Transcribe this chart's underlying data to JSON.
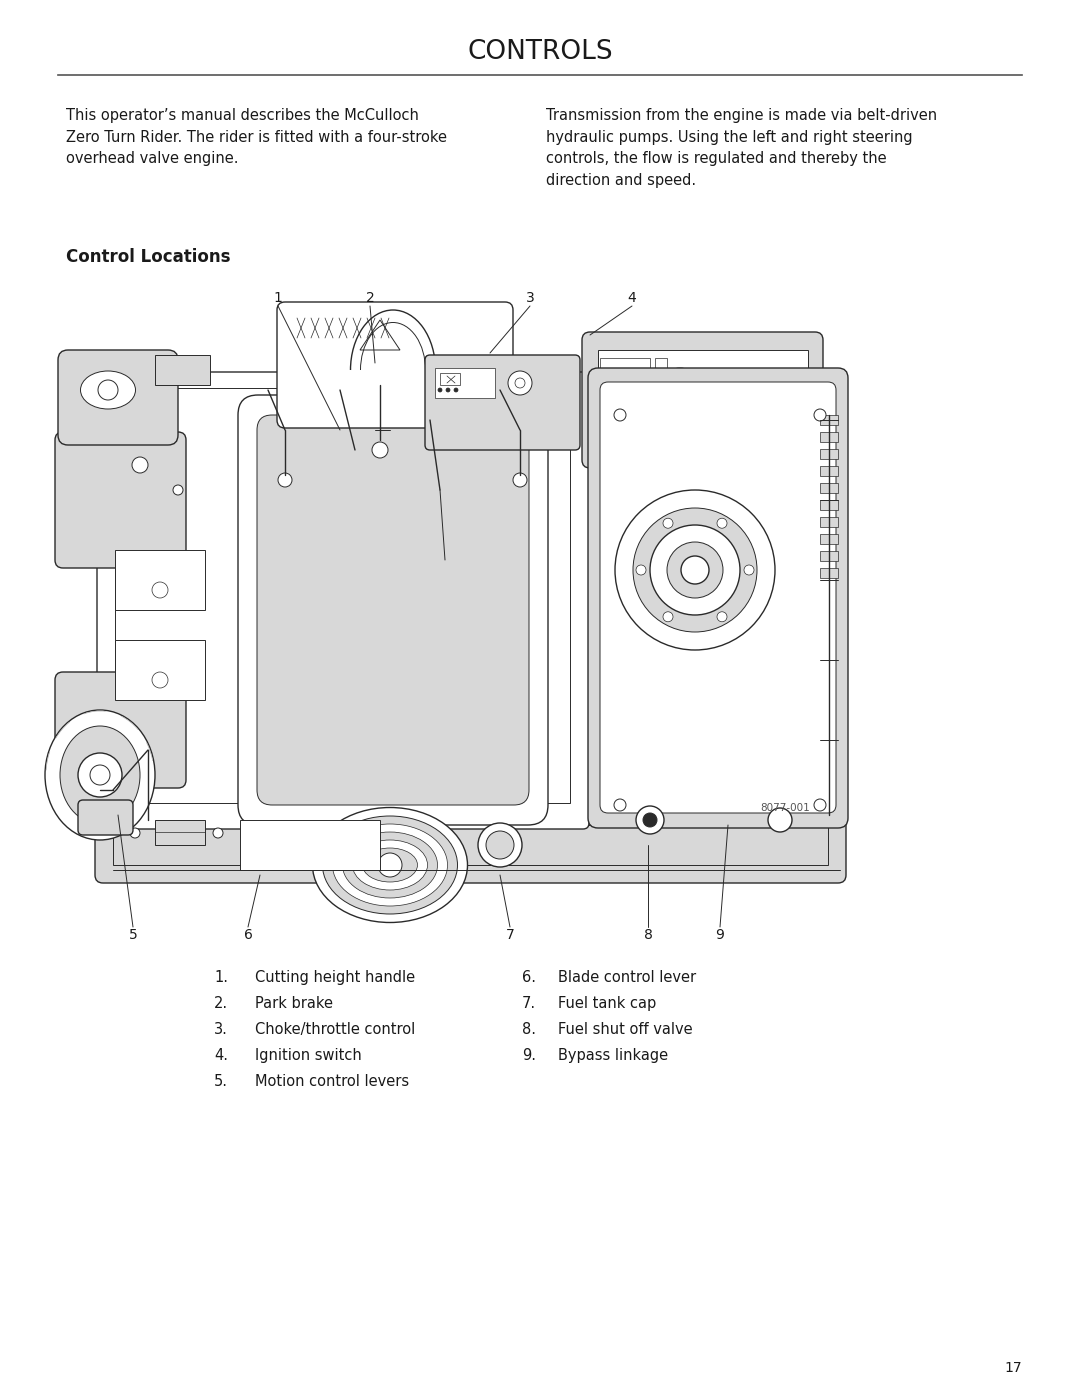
{
  "title": "CONTROLS",
  "title_fontsize": 19,
  "title_color": "#1a1a1a",
  "background_color": "#ffffff",
  "separator_color": "#333333",
  "body_text_left": "This operator’s manual describes the McCulloch\nZero Turn Rider. The rider is fitted with a four-stroke\noverhead valve engine.",
  "body_text_right": "Transmission from the engine is made via belt-driven\nhydraulic pumps. Using the left and right steering\ncontrols, the flow is regulated and thereby the\ndirection and speed.",
  "section_title": "Control Locations",
  "section_title_fontsize": 12,
  "body_fontsize": 10.5,
  "image_ref": "8077-001",
  "items_left": [
    [
      "1.",
      "Cutting height handle"
    ],
    [
      "2.",
      "Park brake"
    ],
    [
      "3.",
      "Choke/throttle control"
    ],
    [
      "4.",
      "Ignition switch"
    ],
    [
      "5.",
      "Motion control levers"
    ]
  ],
  "items_right": [
    [
      "6.",
      "Blade control lever"
    ],
    [
      "7.",
      "Fuel tank cap"
    ],
    [
      "8.",
      "Fuel shut off valve"
    ],
    [
      "9.",
      "Bypass linkage"
    ]
  ],
  "page_number": "17",
  "list_fontsize": 10.5,
  "line_color": "#2a2a2a",
  "light_gray": "#d8d8d8",
  "mid_gray": "#b0b0b0"
}
